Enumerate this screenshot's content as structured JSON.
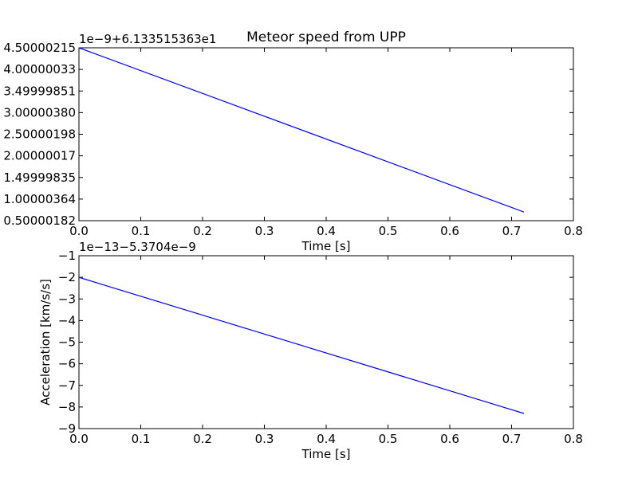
{
  "chart_data": [
    {
      "type": "line",
      "title": "Meteor speed from  UPP",
      "xlabel": "Time [s]",
      "ylabel": "",
      "offset_text": "1e−9+6.133515363e1",
      "xlim": [
        0.0,
        0.8
      ],
      "ylim": [
        0.50000182,
        4.50000215
      ],
      "x_ticks": [
        0.0,
        0.1,
        0.2,
        0.3,
        0.4,
        0.5,
        0.6,
        0.7,
        0.8
      ],
      "x_tick_labels": [
        "0.0",
        "0.1",
        "0.2",
        "0.3",
        "0.4",
        "0.5",
        "0.6",
        "0.7",
        "0.8"
      ],
      "y_ticks": [
        0.50000182,
        1.00000364,
        1.49999835,
        2.00000017,
        2.50000198,
        3.0000038,
        3.49999851,
        4.00000033,
        4.50000215
      ],
      "y_tick_labels": [
        "0.50000182",
        "1.00000364",
        "1.49999835",
        "2.00000017",
        "2.50000198",
        "3.00000380",
        "3.49999851",
        "4.00000033",
        "4.50000215"
      ],
      "grid": false,
      "color": "#0000ff",
      "series": [
        {
          "x": [
            0.0,
            0.72
          ],
          "y": [
            4.5,
            0.7
          ]
        }
      ]
    },
    {
      "type": "line",
      "title": "",
      "xlabel": "Time [s]",
      "ylabel": "Acceleration [km/s/s]",
      "offset_text": "1e−13−5.3704e−9",
      "xlim": [
        0.0,
        0.8
      ],
      "ylim": [
        -9,
        -1
      ],
      "x_ticks": [
        0.0,
        0.1,
        0.2,
        0.3,
        0.4,
        0.5,
        0.6,
        0.7,
        0.8
      ],
      "x_tick_labels": [
        "0.0",
        "0.1",
        "0.2",
        "0.3",
        "0.4",
        "0.5",
        "0.6",
        "0.7",
        "0.8"
      ],
      "y_ticks": [
        -1,
        -2,
        -3,
        -4,
        -5,
        -6,
        -7,
        -8,
        -9
      ],
      "y_tick_labels": [
        "−1",
        "−2",
        "−3",
        "−4",
        "−5",
        "−6",
        "−7",
        "−8",
        "−9"
      ],
      "grid": false,
      "color": "#0000ff",
      "series": [
        {
          "x": [
            0.0,
            0.72
          ],
          "y": [
            -2.0,
            -8.3
          ]
        }
      ]
    }
  ]
}
